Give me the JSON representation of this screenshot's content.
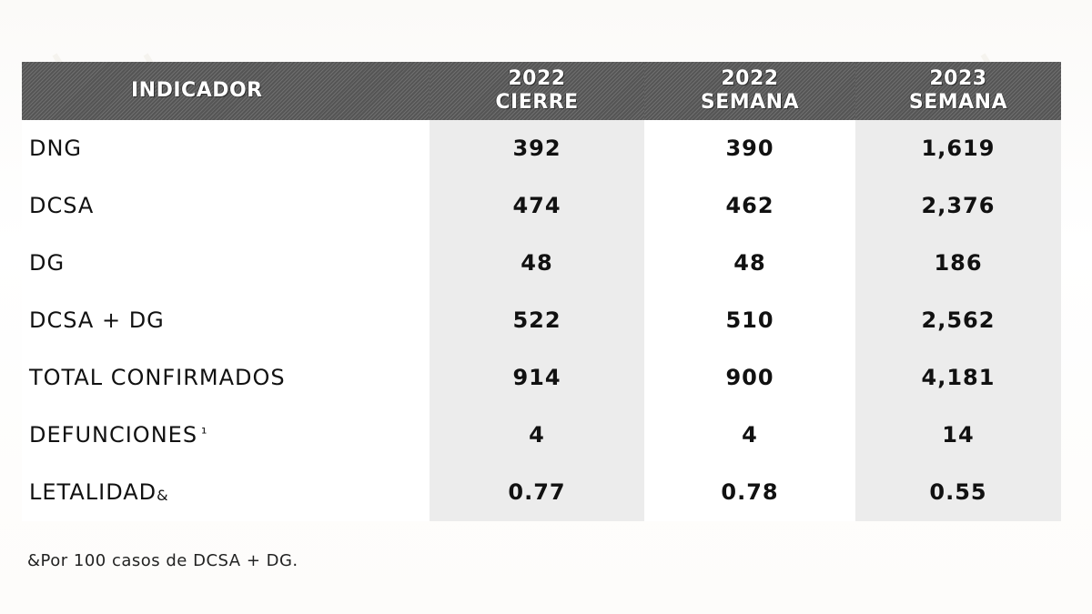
{
  "header": {
    "indicador": "INDICADOR",
    "col1": {
      "year": "2022",
      "label": "CIERRE"
    },
    "col2": {
      "year": "2022",
      "label": "SEMANA"
    },
    "col3": {
      "year": "2023",
      "label": "SEMANA"
    }
  },
  "rows": [
    {
      "label": "DNG",
      "v1": "392",
      "v2": "390",
      "v3": "1,619"
    },
    {
      "label": "DCSA",
      "v1": "474",
      "v2": "462",
      "v3": "2,376"
    },
    {
      "label": "DG",
      "v1": "48",
      "v2": "48",
      "v3": "186"
    },
    {
      "label": "DCSA + DG",
      "v1": "522",
      "v2": "510",
      "v3": "2,562"
    },
    {
      "label": "TOTAL CONFIRMADOS",
      "v1": "914",
      "v2": "900",
      "v3": "4,181"
    },
    {
      "label": "DEFUNCIONES",
      "mark": "¹",
      "v1": "4",
      "v2": "4",
      "v3": "14"
    },
    {
      "label": "LETALIDAD",
      "mark": "&",
      "v1": "0.77",
      "v2": "0.78",
      "v3": "0.55"
    }
  ],
  "footnote": "&Por 100 casos de DCSA + DG.",
  "colors": {
    "header_bg": "#5f5f5f",
    "shaded_column": "#ececec",
    "text": "#111111"
  }
}
